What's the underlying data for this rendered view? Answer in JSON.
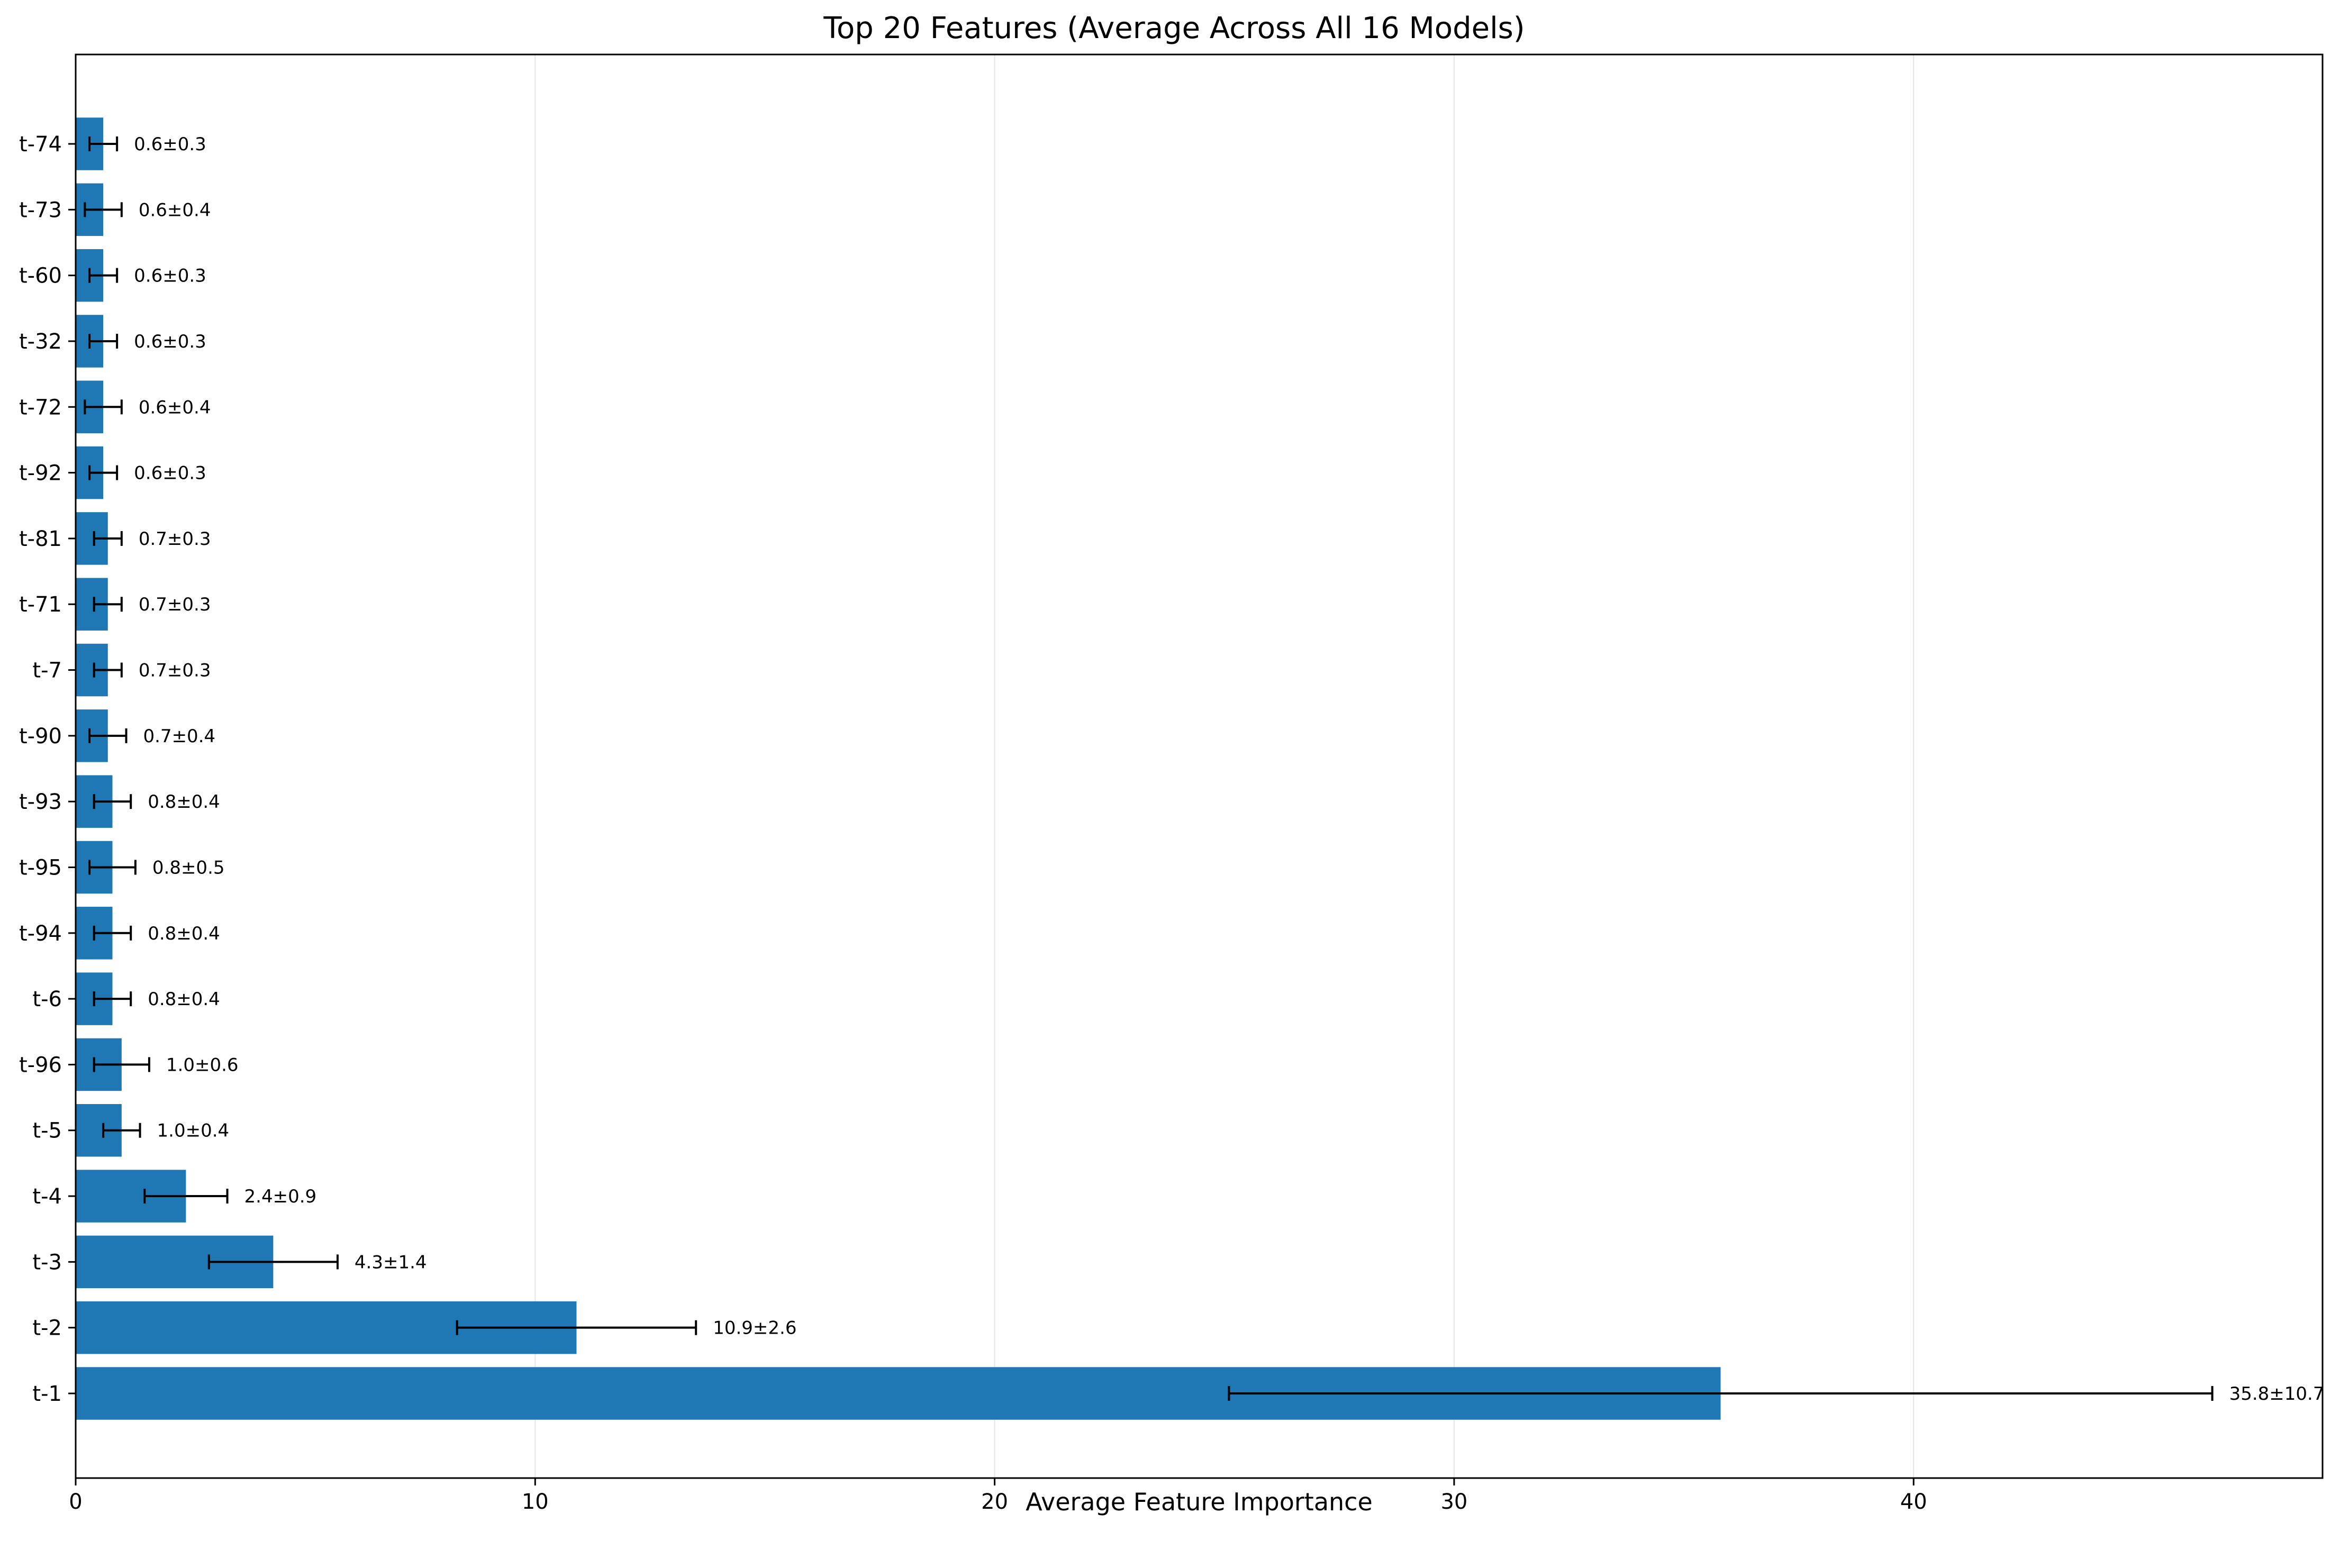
{
  "chart_data": {
    "type": "bar",
    "orientation": "horizontal",
    "title": "Top 20 Features (Average Across All 16 Models)",
    "xlabel": "Average Feature Importance",
    "ylabel": "",
    "xlim": [
      0,
      48.9
    ],
    "x_ticks": [
      0,
      10,
      20,
      30,
      40
    ],
    "grid": "vertical",
    "bar_color": "#1f77b4",
    "errorbar_color": "#000000",
    "categories": [
      "t-1",
      "t-2",
      "t-3",
      "t-4",
      "t-5",
      "t-96",
      "t-6",
      "t-94",
      "t-95",
      "t-93",
      "t-90",
      "t-7",
      "t-71",
      "t-81",
      "t-92",
      "t-72",
      "t-32",
      "t-60",
      "t-73",
      "t-74"
    ],
    "values": [
      35.8,
      10.9,
      4.3,
      2.4,
      1.0,
      1.0,
      0.8,
      0.8,
      0.8,
      0.8,
      0.7,
      0.7,
      0.7,
      0.7,
      0.6,
      0.6,
      0.6,
      0.6,
      0.6,
      0.6
    ],
    "errors": [
      10.7,
      2.6,
      1.4,
      0.9,
      0.4,
      0.6,
      0.4,
      0.4,
      0.5,
      0.4,
      0.4,
      0.3,
      0.3,
      0.3,
      0.3,
      0.4,
      0.3,
      0.3,
      0.4,
      0.3
    ],
    "data_labels": [
      "35.8±10.7",
      "10.9±2.6",
      "4.3±1.4",
      "2.4±0.9",
      "1.0±0.4",
      "1.0±0.6",
      "0.8±0.4",
      "0.8±0.4",
      "0.8±0.5",
      "0.8±0.4",
      "0.7±0.4",
      "0.7±0.3",
      "0.7±0.3",
      "0.7±0.3",
      "0.6±0.3",
      "0.6±0.4",
      "0.6±0.3",
      "0.6±0.3",
      "0.6±0.4",
      "0.6±0.3"
    ]
  }
}
